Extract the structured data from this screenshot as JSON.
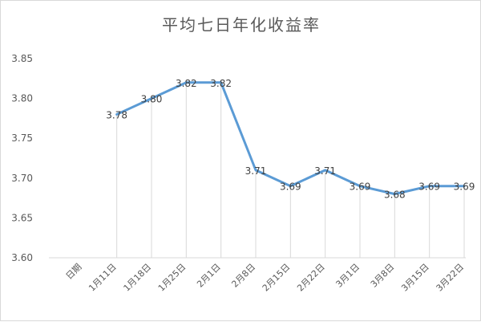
{
  "chart_data": {
    "type": "line",
    "title": "平均七日年化收益率",
    "categories": [
      "日期",
      "1月11日",
      "1月18日",
      "1月25日",
      "2月1日",
      "2月8日",
      "2月15日",
      "2月22日",
      "3月1日",
      "3月8日",
      "3月15日",
      "3月22日"
    ],
    "series": [
      {
        "values": [
          null,
          3.78,
          3.8,
          3.82,
          3.82,
          3.71,
          3.69,
          3.71,
          3.69,
          3.68,
          3.69,
          3.69
        ],
        "color": "#5b9bd5"
      }
    ],
    "data_labels": [
      "",
      "3.78",
      "3.80",
      "3.82",
      "3.82",
      "3.71",
      "3.69",
      "3.71",
      "3.69",
      "3.68",
      "3.69",
      "3.69"
    ],
    "yticks": [
      "3.60",
      "3.65",
      "3.70",
      "3.75",
      "3.80",
      "3.85"
    ],
    "ylim": [
      3.6,
      3.85
    ],
    "xlabel": "",
    "ylabel": "",
    "grid": "vertical drop lines",
    "legend": "none"
  }
}
